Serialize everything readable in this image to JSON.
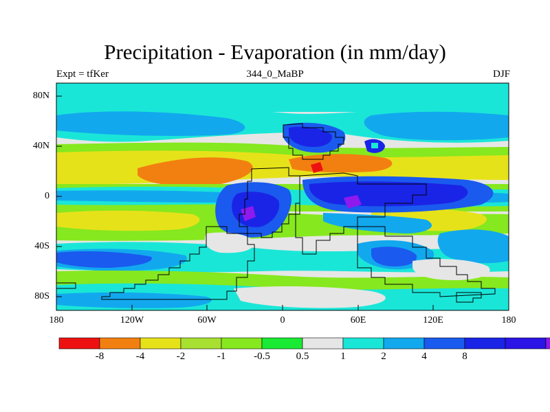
{
  "title": "Precipitation - Evaporation (in mm/day)",
  "subtitle_left": "Expt = tfKer",
  "subtitle_center": "344_0_MaBP",
  "subtitle_right": "DJF",
  "lat_labels": [
    "80N",
    "40N",
    "0",
    "40S",
    "80S"
  ],
  "lon_labels": [
    "180",
    "120W",
    "60W",
    "0",
    "60E",
    "120E",
    "180"
  ],
  "colorbar": {
    "colors": [
      "#ee1111",
      "#f28010",
      "#e6e21a",
      "#a8e032",
      "#86e81e",
      "#1aea33",
      "#e6e6e6",
      "#1ae6d8",
      "#12a8ee",
      "#1a5aee",
      "#1a24e6",
      "#2a14e6",
      "#8e1aee"
    ],
    "labels": [
      "-8",
      "-4",
      "-2",
      "-1",
      "-0.5",
      "0.5",
      "1",
      "2",
      "4",
      "8"
    ]
  },
  "colors": {
    "background": "#ffffff",
    "coastline": "#000000",
    "no_change": "#e6e6e6"
  }
}
